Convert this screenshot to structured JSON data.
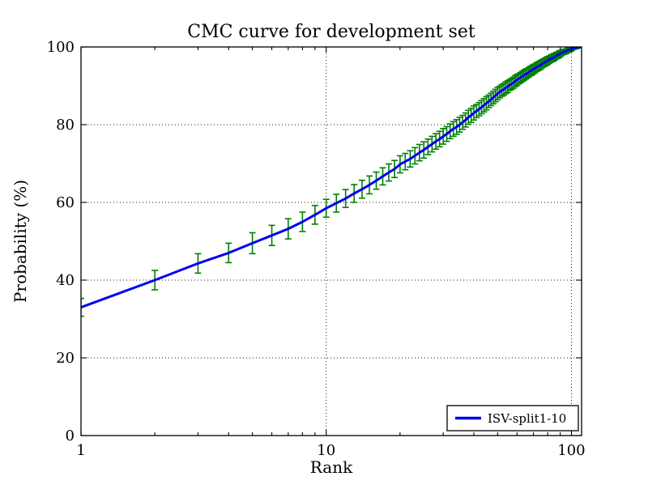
{
  "figure": {
    "background": "#ffffff"
  },
  "chart_data": {
    "type": "line",
    "error_bars": true,
    "title": "CMC curve for development set",
    "xlabel": "Rank",
    "ylabel": "Probability (%)",
    "xscale": "log",
    "xlim": [
      1,
      110
    ],
    "ylim": [
      0,
      100
    ],
    "xticks": [
      1,
      10,
      100
    ],
    "xtick_labels": [
      "1",
      "10",
      "100"
    ],
    "xminorticks": [
      2,
      3,
      4,
      5,
      6,
      7,
      8,
      9,
      20,
      30,
      40,
      50,
      60,
      70,
      80,
      90
    ],
    "yticks": [
      0,
      20,
      40,
      60,
      80,
      100
    ],
    "ytick_labels": [
      "0",
      "20",
      "40",
      "60",
      "80",
      "100"
    ],
    "grid": "dotted",
    "legend": {
      "position": "lower right",
      "entries": [
        {
          "label": "ISV-split1-10",
          "color": "#0000f0"
        }
      ]
    },
    "colors": {
      "line": "#0000f0",
      "errorbar": "#008000",
      "grid": "#1a1a1a",
      "axes": "#000000",
      "background": "#ffffff"
    },
    "series": [
      {
        "name": "ISV-split1-10",
        "x": [
          1,
          2,
          3,
          4,
          5,
          6,
          7,
          8,
          9,
          10,
          11,
          12,
          13,
          14,
          15,
          16,
          17,
          18,
          19,
          20,
          21,
          22,
          23,
          24,
          25,
          26,
          27,
          28,
          29,
          30,
          31,
          32,
          33,
          34,
          35,
          36,
          37,
          38,
          39,
          40,
          41,
          42,
          43,
          44,
          45,
          46,
          47,
          48,
          49,
          50,
          51,
          52,
          53,
          54,
          55,
          56,
          57,
          58,
          59,
          60,
          61,
          62,
          63,
          64,
          65,
          66,
          67,
          68,
          69,
          70,
          71,
          72,
          73,
          74,
          75,
          76,
          77,
          78,
          79,
          80,
          81,
          82,
          83,
          84,
          85,
          86,
          87,
          88,
          89,
          90,
          91,
          92,
          93,
          94,
          95,
          96,
          97,
          98,
          99,
          100,
          101,
          102,
          103,
          104,
          105,
          106,
          107,
          108,
          109,
          110
        ],
        "y": [
          33.0,
          40.0,
          44.3,
          47.0,
          49.5,
          51.5,
          53.2,
          55.0,
          56.8,
          58.5,
          59.8,
          61.0,
          62.3,
          63.4,
          64.5,
          65.6,
          66.7,
          67.7,
          68.6,
          69.8,
          70.5,
          71.2,
          72.0,
          72.8,
          73.5,
          74.3,
          75.0,
          75.7,
          76.3,
          77.0,
          77.6,
          78.3,
          78.9,
          79.4,
          80.0,
          80.6,
          81.2,
          81.9,
          82.4,
          83.0,
          83.5,
          84.0,
          84.5,
          85.0,
          85.5,
          86.0,
          86.5,
          87.0,
          87.5,
          88.0,
          88.4,
          88.8,
          89.1,
          89.5,
          89.8,
          90.2,
          90.5,
          90.8,
          91.2,
          91.5,
          91.8,
          92.1,
          92.4,
          92.7,
          93.0,
          93.2,
          93.5,
          93.8,
          94.0,
          94.3,
          94.5,
          94.8,
          95.0,
          95.2,
          95.4,
          95.7,
          95.9,
          96.1,
          96.3,
          96.5,
          96.7,
          96.9,
          97.1,
          97.2,
          97.4,
          97.6,
          97.8,
          97.9,
          98.1,
          98.3,
          98.4,
          98.6,
          98.7,
          98.8,
          98.9,
          99.0,
          99.2,
          99.3,
          99.4,
          99.5,
          99.6,
          99.7,
          99.8,
          99.85,
          99.9,
          99.92,
          99.95,
          99.97,
          99.99,
          100.0
        ],
        "yerr": [
          2.3,
          2.5,
          2.5,
          2.5,
          2.7,
          2.6,
          2.6,
          2.5,
          2.4,
          2.3,
          2.3,
          2.3,
          2.3,
          2.3,
          2.3,
          2.2,
          2.2,
          2.2,
          2.2,
          2.2,
          2.1,
          2.1,
          2.1,
          2.1,
          2.1,
          2.0,
          2.0,
          2.0,
          2.0,
          2.0,
          1.9,
          1.9,
          1.9,
          1.9,
          1.9,
          1.8,
          1.8,
          1.8,
          1.8,
          1.8,
          1.7,
          1.7,
          1.7,
          1.7,
          1.7,
          1.6,
          1.6,
          1.6,
          1.6,
          1.6,
          1.5,
          1.5,
          1.5,
          1.5,
          1.5,
          1.4,
          1.4,
          1.4,
          1.4,
          1.4,
          1.3,
          1.3,
          1.3,
          1.3,
          1.3,
          1.2,
          1.2,
          1.2,
          1.2,
          1.2,
          1.1,
          1.1,
          1.1,
          1.1,
          1.1,
          1.0,
          1.0,
          1.0,
          1.0,
          1.0,
          0.9,
          0.9,
          0.9,
          0.9,
          0.9,
          0.8,
          0.8,
          0.8,
          0.8,
          0.8,
          0.6,
          0.6,
          0.6,
          0.6,
          0.6,
          0.5,
          0.5,
          0.5,
          0.5,
          0.5,
          0.3,
          0.3,
          0.3,
          0.3,
          0.3,
          0.15,
          0.15,
          0.15,
          0.15,
          0.15
        ]
      }
    ]
  }
}
